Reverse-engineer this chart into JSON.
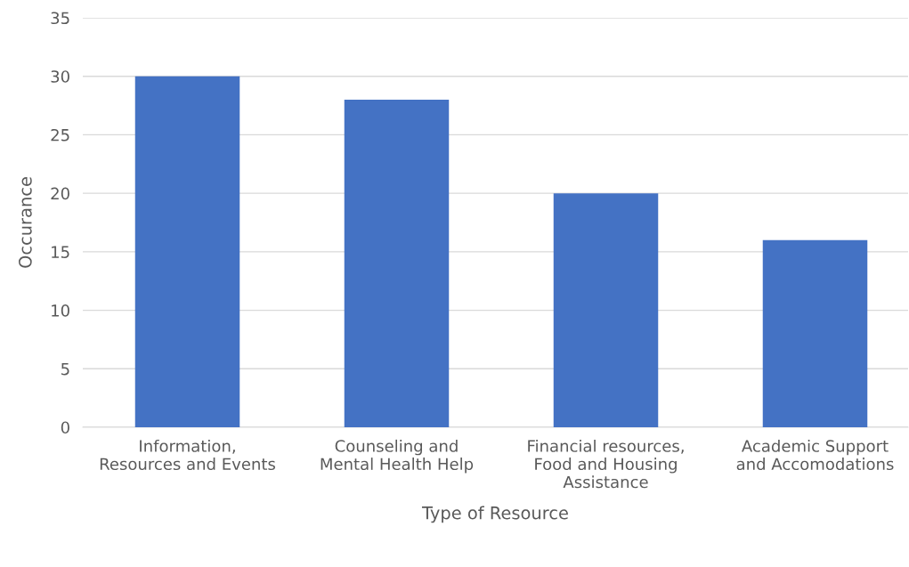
{
  "chart_data": {
    "type": "bar",
    "xlabel": "Type of Resource",
    "ylabel": "Occurance",
    "categories": [
      "Information,\nResources and Events",
      "Counseling and\nMental Health Help",
      "Financial resources,\nFood and Housing\nAssistance",
      "Academic Support\nand Accomodations"
    ],
    "values": [
      30,
      28,
      20,
      16
    ],
    "color": "#4472c4",
    "ylim": [
      0,
      35
    ],
    "yticks": [
      0,
      5,
      10,
      15,
      20,
      25,
      30,
      35
    ],
    "grid": "y",
    "legend": false
  }
}
